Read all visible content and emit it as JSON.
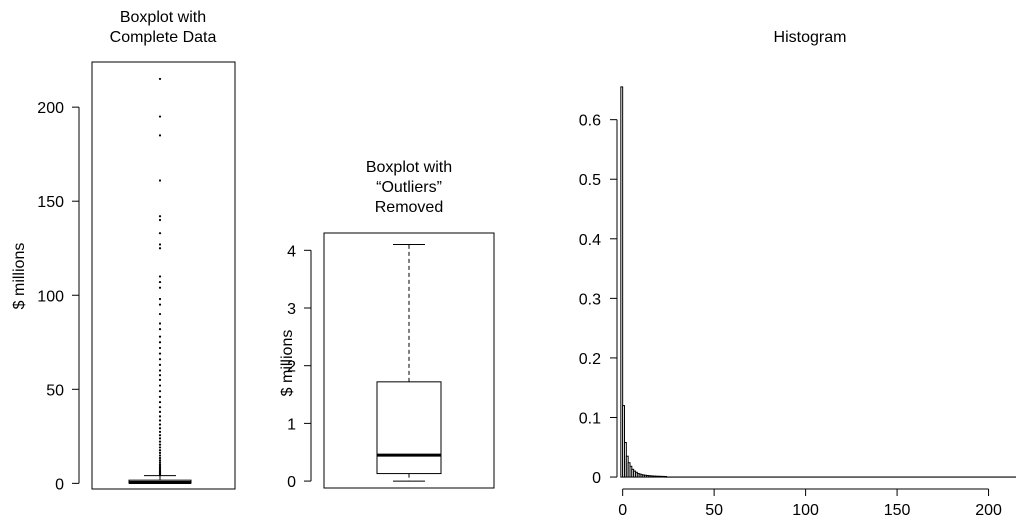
{
  "chart_data": [
    {
      "type": "boxplot",
      "title": [
        "Boxplot with",
        "Complete Data"
      ],
      "ylabel": "$ millions",
      "ylim": [
        -3,
        224
      ],
      "yticks": [
        0,
        50,
        100,
        150,
        200
      ],
      "box": {
        "whisker_low": 0,
        "q1": 0.1,
        "median": 0.45,
        "q3": 1.7,
        "whisker_high": 4.1
      },
      "outliers": [
        4.3,
        4.6,
        5.0,
        5.4,
        5.9,
        6.4,
        7.0,
        7.7,
        8.5,
        9.3,
        10.2,
        11.2,
        12.3,
        13.5,
        14.8,
        16.2,
        17.6,
        19.1,
        20.6,
        22.2,
        23.9,
        25.6,
        27.4,
        29.3,
        31.3,
        33.4,
        35.6,
        38.0,
        40.5,
        43.2,
        46.0,
        49.0,
        52.0,
        55.0,
        57.5,
        60.0,
        63.0,
        66.0,
        69.0,
        72.0,
        75.0,
        78.0,
        82.0,
        85.0,
        90.0,
        95.0,
        98.0,
        104.0,
        107.0,
        110.0,
        125.0,
        127.0,
        133.0,
        140.0,
        142.0,
        161.0,
        185.0,
        195.0,
        215.0
      ]
    },
    {
      "type": "boxplot",
      "title": [
        "Boxplot with",
        "“Outliers”",
        "Removed"
      ],
      "ylabel": "$ millions",
      "ylim": [
        -0.12,
        4.3
      ],
      "yticks": [
        0,
        1,
        2,
        3,
        4
      ],
      "box": {
        "whisker_low": 0,
        "q1": 0.13,
        "median": 0.45,
        "q3": 1.72,
        "whisker_high": 4.1
      }
    },
    {
      "type": "histogram",
      "title": [
        "Histogram"
      ],
      "xlim": [
        -2,
        215
      ],
      "ylim": [
        -0.01,
        0.675
      ],
      "xticks": [
        0,
        50,
        100,
        150,
        200
      ],
      "yticks": [
        0,
        0.1,
        0.2,
        0.3,
        0.4,
        0.5,
        0.6
      ],
      "ytick_labels": [
        "0",
        "0.1",
        "0.2",
        "0.3",
        "0.4",
        "0.5",
        "0.6"
      ],
      "bin_start": -1,
      "bin_width": 1,
      "densities": [
        0.655,
        0.12,
        0.058,
        0.035,
        0.024,
        0.018,
        0.013,
        0.01,
        0.008,
        0.006,
        0.005,
        0.004,
        0.0035,
        0.003,
        0.0026,
        0.0022,
        0.002,
        0.0018,
        0.0016,
        0.0014,
        0.0013,
        0.0012,
        0.0011,
        0.001,
        0.0009
      ]
    }
  ]
}
